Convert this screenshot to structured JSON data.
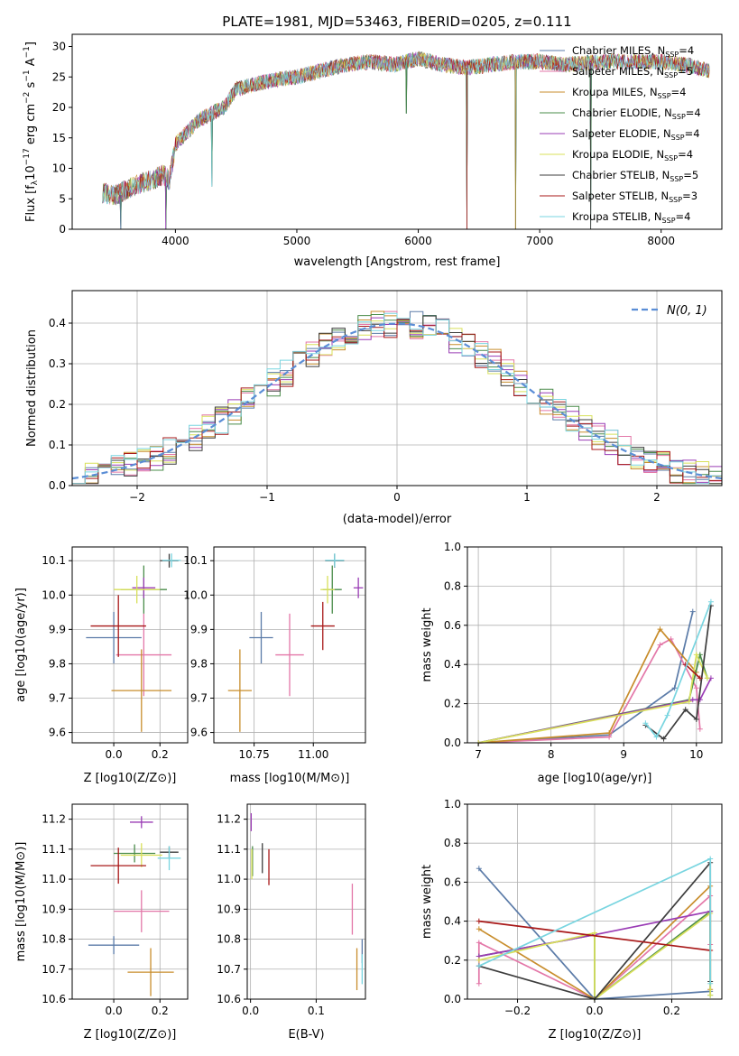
{
  "figure_title": "PLATE=1981, MJD=53463, FIBERID=0205, z=0.111",
  "colors": {
    "series": [
      "#5b7ba8",
      "#e377a8",
      "#c88d2c",
      "#4a8c4a",
      "#9a3cb5",
      "#d8e05a",
      "#3d3d3d",
      "#a81818",
      "#79d5e0"
    ],
    "gauss": "#5b8ed6",
    "grid": "#b0b0b0"
  },
  "legend_series": [
    {
      "name": "Chabrier MILES, N",
      "sub": "SSP",
      "suffix": "=4",
      "color": "#5b7ba8"
    },
    {
      "name": "Salpeter MILES, N",
      "sub": "SSP",
      "suffix": "=5",
      "color": "#e377a8"
    },
    {
      "name": "Kroupa MILES, N",
      "sub": "SSP",
      "suffix": "=4",
      "color": "#c88d2c"
    },
    {
      "name": "Chabrier ELODIE, N",
      "sub": "SSP",
      "suffix": "=4",
      "color": "#4a8c4a"
    },
    {
      "name": "Salpeter ELODIE, N",
      "sub": "SSP",
      "suffix": "=4",
      "color": "#9a3cb5"
    },
    {
      "name": "Kroupa ELODIE, N",
      "sub": "SSP",
      "suffix": "=4",
      "color": "#d8e05a"
    },
    {
      "name": "Chabrier STELIB, N",
      "sub": "SSP",
      "suffix": "=5",
      "color": "#3d3d3d"
    },
    {
      "name": "Salpeter STELIB, N",
      "sub": "SSP",
      "suffix": "=3",
      "color": "#a81818"
    },
    {
      "name": "Kroupa STELIB, N",
      "sub": "SSP",
      "suffix": "=4",
      "color": "#79d5e0"
    }
  ],
  "chart_data": [
    {
      "id": "spectrum",
      "type": "line",
      "xlabel": "wavelength [Angstrom, rest frame]",
      "ylabel": "Flux [f_λ10^-17 erg cm^-2 s^-1 A^-1]",
      "xlim": [
        3150,
        8500
      ],
      "ylim": [
        0,
        32
      ],
      "xticks": [
        4000,
        5000,
        6000,
        7000,
        8000
      ],
      "yticks": [
        0,
        5,
        10,
        15,
        20,
        25,
        30
      ],
      "x": [
        3400,
        3500,
        3600,
        3700,
        3800,
        3900,
        3950,
        4000,
        4100,
        4200,
        4300,
        4400,
        4500,
        4600,
        4800,
        5000,
        5200,
        5400,
        5600,
        5800,
        6000,
        6200,
        6400,
        6600,
        6800,
        7000,
        7200,
        7400,
        7600,
        7800,
        8000,
        8200,
        8400
      ],
      "y": [
        6,
        5.5,
        6.5,
        7.5,
        8,
        9,
        8,
        14,
        16,
        18,
        19,
        20,
        23,
        23.5,
        24.5,
        25,
        26,
        27,
        27.5,
        27,
        28,
        27,
        26.5,
        27,
        27.5,
        27.5,
        27,
        27.3,
        27.5,
        27.5,
        27.5,
        27,
        26
      ],
      "drops": [
        [
          3550,
          0
        ],
        [
          3920,
          0
        ],
        [
          4300,
          7
        ],
        [
          5900,
          19
        ],
        [
          6400,
          0
        ],
        [
          6800,
          0
        ],
        [
          7420,
          0
        ]
      ]
    },
    {
      "id": "residuals",
      "type": "step-histogram",
      "xlabel": "(data-model)/error",
      "ylabel": "Normed distribution",
      "xlim": [
        -2.5,
        2.5
      ],
      "ylim": [
        0,
        0.48
      ],
      "xticks": [
        -2,
        -1,
        0,
        1,
        2
      ],
      "yticks": [
        0.0,
        0.1,
        0.2,
        0.3,
        0.4
      ],
      "gauss_label": "N(0, 1)",
      "bin_width": 0.1,
      "noise_amplitude": 0.035
    },
    {
      "id": "age_vs_Z",
      "type": "errorbar",
      "xlabel": "Z [log10(Z/Z⊙)]",
      "ylabel": "age [log10(age/yr)]",
      "xlim": [
        -0.18,
        0.32
      ],
      "ylim": [
        9.57,
        10.14
      ],
      "xticks": [
        0.0,
        0.2
      ],
      "yticks": [
        9.6,
        9.7,
        9.8,
        9.9,
        10.0,
        10.1
      ],
      "points": [
        {
          "x": 0.0,
          "y": 9.876,
          "xe": 0.12,
          "ye": 0.075,
          "s": 0
        },
        {
          "x": 0.13,
          "y": 9.826,
          "xe": 0.12,
          "ye": 0.12,
          "s": 1
        },
        {
          "x": 0.12,
          "y": 9.722,
          "xe": 0.13,
          "ye": 0.12,
          "s": 2
        },
        {
          "x": 0.13,
          "y": 10.016,
          "xe": 0.1,
          "ye": 0.07,
          "s": 3
        },
        {
          "x": 0.13,
          "y": 10.021,
          "xe": 0.05,
          "ye": 0.03,
          "s": 4
        },
        {
          "x": 0.1,
          "y": 10.016,
          "xe": 0.1,
          "ye": 0.04,
          "s": 5
        },
        {
          "x": 0.24,
          "y": 10.1,
          "xe": 0.04,
          "ye": 0.02,
          "s": 6
        },
        {
          "x": 0.02,
          "y": 9.91,
          "xe": 0.12,
          "ye": 0.09,
          "s": 7
        },
        {
          "x": 0.25,
          "y": 10.101,
          "xe": 0.04,
          "ye": 0.02,
          "s": 8
        }
      ]
    },
    {
      "id": "age_vs_mass",
      "type": "errorbar",
      "xlabel": "mass [log10(M/M⊙)]",
      "ylabel": "",
      "xlim": [
        10.58,
        11.22
      ],
      "ylim": [
        9.57,
        10.14
      ],
      "xticks": [
        10.75,
        11.0
      ],
      "yticks": [
        9.6,
        9.7,
        9.8,
        9.9,
        10.0,
        10.1
      ],
      "points": [
        {
          "x": 10.78,
          "y": 9.876,
          "xe": 0.05,
          "ye": 0.075,
          "s": 0
        },
        {
          "x": 10.9,
          "y": 9.826,
          "xe": 0.06,
          "ye": 0.12,
          "s": 1
        },
        {
          "x": 10.69,
          "y": 9.722,
          "xe": 0.05,
          "ye": 0.12,
          "s": 2
        },
        {
          "x": 11.08,
          "y": 10.016,
          "xe": 0.04,
          "ye": 0.07,
          "s": 3
        },
        {
          "x": 11.19,
          "y": 10.021,
          "xe": 0.02,
          "ye": 0.03,
          "s": 4
        },
        {
          "x": 11.06,
          "y": 10.016,
          "xe": 0.03,
          "ye": 0.04,
          "s": 5
        },
        {
          "x": 11.09,
          "y": 10.1,
          "xe": 0.04,
          "ye": 0.02,
          "s": 6
        },
        {
          "x": 11.04,
          "y": 9.91,
          "xe": 0.05,
          "ye": 0.07,
          "s": 7
        },
        {
          "x": 11.09,
          "y": 10.101,
          "xe": 0.04,
          "ye": 0.02,
          "s": 8
        }
      ]
    },
    {
      "id": "mw_vs_age",
      "type": "line",
      "xlabel": "age [log10(age/yr)]",
      "ylabel": "mass weight",
      "xlim": [
        6.85,
        10.35
      ],
      "ylim": [
        0,
        1
      ],
      "xticks": [
        7,
        8,
        9,
        10
      ],
      "yticks": [
        0.0,
        0.2,
        0.4,
        0.6,
        0.8,
        1.0
      ],
      "series": [
        {
          "s": 0,
          "x": [
            7.0,
            8.8,
            9.7,
            9.95
          ],
          "y": [
            0.0,
            0.04,
            0.28,
            0.67
          ]
        },
        {
          "s": 1,
          "x": [
            7.0,
            8.8,
            9.5,
            9.65,
            10.0,
            10.05
          ],
          "y": [
            0.0,
            0.03,
            0.5,
            0.53,
            0.28,
            0.07
          ]
        },
        {
          "s": 2,
          "x": [
            7.0,
            8.8,
            9.5,
            10.0
          ],
          "y": [
            0.0,
            0.05,
            0.58,
            0.36
          ]
        },
        {
          "s": 3,
          "x": [
            7.0,
            9.9,
            10.05,
            10.15
          ],
          "y": [
            0.0,
            0.22,
            0.45,
            0.33
          ]
        },
        {
          "s": 4,
          "x": [
            7.0,
            9.95,
            10.05,
            10.2
          ],
          "y": [
            0.0,
            0.22,
            0.22,
            0.33
          ]
        },
        {
          "s": 5,
          "x": [
            7.0,
            9.9,
            10.0,
            10.15
          ],
          "y": [
            0.0,
            0.21,
            0.45,
            0.33
          ]
        },
        {
          "s": 6,
          "x": [
            9.3,
            9.55,
            9.85,
            10.0,
            10.2
          ],
          "y": [
            0.09,
            0.02,
            0.17,
            0.12,
            0.7
          ]
        },
        {
          "s": 7,
          "x": [
            9.85,
            10.05
          ],
          "y": [
            0.4,
            0.33
          ]
        },
        {
          "s": 8,
          "x": [
            9.3,
            9.45,
            9.6,
            10.2
          ],
          "y": [
            0.1,
            0.03,
            0.14,
            0.72
          ]
        }
      ]
    },
    {
      "id": "mass_vs_Z",
      "type": "errorbar",
      "xlabel": "Z [log10(Z/Z⊙)]",
      "ylabel": "mass [log10(M/M⊙)]",
      "xlim": [
        -0.18,
        0.32
      ],
      "ylim": [
        10.6,
        11.25
      ],
      "xticks": [
        0.0,
        0.2
      ],
      "yticks": [
        10.6,
        10.7,
        10.8,
        10.9,
        11.0,
        11.1,
        11.2
      ],
      "points": [
        {
          "x": 0.0,
          "y": 10.78,
          "xe": 0.11,
          "ye": 0.03,
          "s": 0
        },
        {
          "x": 0.12,
          "y": 10.893,
          "xe": 0.12,
          "ye": 0.07,
          "s": 1
        },
        {
          "x": 0.16,
          "y": 10.69,
          "xe": 0.1,
          "ye": 0.08,
          "s": 2
        },
        {
          "x": 0.09,
          "y": 11.086,
          "xe": 0.09,
          "ye": 0.03,
          "s": 3
        },
        {
          "x": 0.12,
          "y": 11.19,
          "xe": 0.05,
          "ye": 0.02,
          "s": 4
        },
        {
          "x": 0.12,
          "y": 11.08,
          "xe": 0.09,
          "ye": 0.04,
          "s": 5
        },
        {
          "x": 0.24,
          "y": 11.09,
          "xe": 0.04,
          "ye": 0.02,
          "s": 6
        },
        {
          "x": 0.02,
          "y": 11.045,
          "xe": 0.12,
          "ye": 0.06,
          "s": 7
        },
        {
          "x": 0.24,
          "y": 11.07,
          "xe": 0.05,
          "ye": 0.04,
          "s": 8
        }
      ]
    },
    {
      "id": "mass_vs_ebv",
      "type": "errorbar",
      "xlabel": "E(B-V)",
      "ylabel": "",
      "xlim": [
        -0.005,
        0.175
      ],
      "ylim": [
        10.6,
        11.25
      ],
      "xticks": [
        0.0,
        0.1
      ],
      "yticks": [
        10.6,
        10.7,
        10.8,
        10.9,
        11.0,
        11.1,
        11.2
      ],
      "points": [
        {
          "x": 0.17,
          "y": 10.76,
          "xe": 0.0,
          "ye": 0.04,
          "s": 0
        },
        {
          "x": 0.155,
          "y": 10.9,
          "xe": 0.0,
          "ye": 0.085,
          "s": 1
        },
        {
          "x": 0.162,
          "y": 10.7,
          "xe": 0.0,
          "ye": 0.07,
          "s": 2
        },
        {
          "x": 0.003,
          "y": 11.06,
          "xe": 0.0,
          "ye": 0.05,
          "s": 3
        },
        {
          "x": 0.001,
          "y": 11.19,
          "xe": 0.0,
          "ye": 0.03,
          "s": 4
        },
        {
          "x": 0.002,
          "y": 11.05,
          "xe": 0.0,
          "ye": 0.05,
          "s": 5
        },
        {
          "x": 0.018,
          "y": 11.07,
          "xe": 0.0,
          "ye": 0.05,
          "s": 6
        },
        {
          "x": 0.028,
          "y": 11.04,
          "xe": 0.0,
          "ye": 0.06,
          "s": 7
        },
        {
          "x": 0.17,
          "y": 10.7,
          "xe": 0.0,
          "ye": 0.05,
          "s": 8
        }
      ]
    },
    {
      "id": "mw_vs_Z",
      "type": "line",
      "xlabel": "Z [log10(Z/Z⊙)]",
      "ylabel": "mass weight",
      "xlim": [
        -0.33,
        0.33
      ],
      "ylim": [
        0,
        1
      ],
      "xticks": [
        -0.2,
        0.0,
        0.2
      ],
      "yticks": [
        0.0,
        0.2,
        0.4,
        0.6,
        0.8,
        1.0
      ],
      "series": [
        {
          "s": 0,
          "x": [
            -0.3,
            0.0,
            0.3
          ],
          "y": [
            0.67,
            0.0,
            0.04
          ]
        },
        {
          "s": 1,
          "x": [
            -0.3,
            -0.3,
            0.0,
            0.3,
            0.3
          ],
          "y": [
            0.08,
            0.29,
            0.0,
            0.53,
            0.28
          ]
        },
        {
          "s": 2,
          "x": [
            -0.3,
            0.0,
            0.3,
            0.3
          ],
          "y": [
            0.36,
            0.0,
            0.58,
            0.05
          ]
        },
        {
          "s": 3,
          "x": [
            -0.3,
            0.0,
            0.0,
            0.3,
            0.3
          ],
          "y": [
            0.22,
            0.33,
            0.0,
            0.45,
            0.02
          ]
        },
        {
          "s": 4,
          "x": [
            -0.3,
            0.0,
            0.3
          ],
          "y": [
            0.22,
            0.33,
            0.45
          ]
        },
        {
          "s": 5,
          "x": [
            -0.3,
            0.0,
            0.0,
            0.3,
            0.3
          ],
          "y": [
            0.2,
            0.34,
            0.0,
            0.44,
            0.02
          ]
        },
        {
          "s": 6,
          "x": [
            -0.3,
            0.0,
            0.3,
            0.3
          ],
          "y": [
            0.17,
            0.0,
            0.7,
            0.09
          ]
        },
        {
          "s": 7,
          "x": [
            -0.3,
            0.3
          ],
          "y": [
            0.4,
            0.25
          ]
        },
        {
          "s": 8,
          "x": [
            -0.3,
            0.3,
            0.3
          ],
          "y": [
            0.17,
            0.72,
            0.08
          ]
        }
      ]
    }
  ]
}
